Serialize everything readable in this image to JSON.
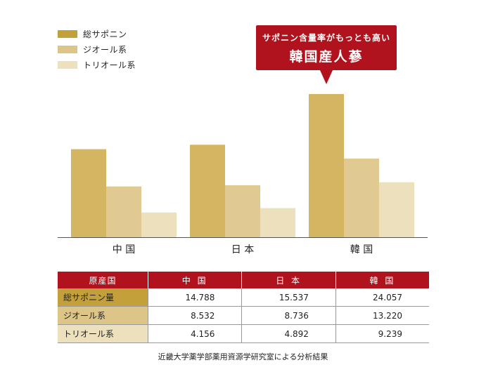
{
  "legend": [
    {
      "label": "総サポニン",
      "color": "#c3a03a"
    },
    {
      "label": "ジオール系",
      "color": "#dcc587"
    },
    {
      "label": "トリオール系",
      "color": "#ece0bd"
    }
  ],
  "callout": {
    "line1": "サポニン含量率がもっとも高い",
    "line2": "韓国産人蔘"
  },
  "chart_data": {
    "type": "bar",
    "categories": [
      "中 国",
      "日 本",
      "韓 国"
    ],
    "series": [
      {
        "name": "総サポニン",
        "values": [
          14.788,
          15.537,
          24.057
        ],
        "color": "#d3b562"
      },
      {
        "name": "ジオール系",
        "values": [
          8.532,
          8.736,
          13.22
        ],
        "color": "#e0ca91"
      },
      {
        "name": "トリオール系",
        "values": [
          4.156,
          4.892,
          9.239
        ],
        "color": "#ece0bd"
      }
    ],
    "title": "",
    "xlabel": "",
    "ylabel": "",
    "grid": false,
    "legend_position": "top-left"
  },
  "table": {
    "header": [
      "原産国",
      "中 国",
      "日 本",
      "韓 国"
    ],
    "rows": [
      {
        "label": "総サポニン量",
        "values": [
          "14.788",
          "15.537",
          "24.057"
        ],
        "color": "#c3a03a"
      },
      {
        "label": "ジオール系",
        "values": [
          "8.532",
          "8.736",
          "13.220"
        ],
        "color": "#dcc587"
      },
      {
        "label": "トリオール系",
        "values": [
          "4.156",
          "4.892",
          "9.239"
        ],
        "color": "#ece0bd"
      }
    ]
  },
  "footnote": "近畿大学薬学部薬用資源学研究室による分析結果"
}
